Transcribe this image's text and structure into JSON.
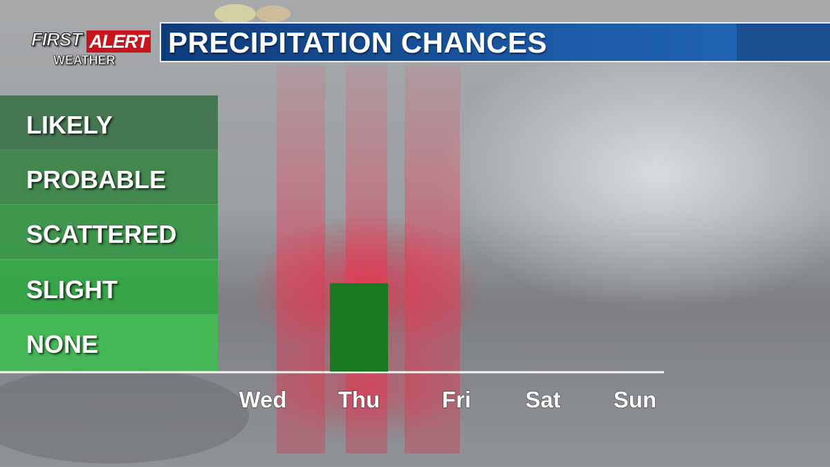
{
  "brand": {
    "first": "FIRST",
    "alert": "ALERT",
    "sub": "WEATHER"
  },
  "title": "PRECIPITATION CHANCES",
  "colors": {
    "bar": "#1a7a22",
    "title_bar": "#1b5aa6",
    "alert_red": "#c8141c"
  },
  "chart_data": {
    "type": "bar",
    "categories": [
      "Wed",
      "Thu",
      "Fri",
      "Sat",
      "Sun"
    ],
    "levels": [
      "NONE",
      "SLIGHT",
      "SCATTERED",
      "PROBABLE",
      "LIKELY"
    ],
    "values": [
      0,
      1.6,
      0,
      0,
      0
    ],
    "ylim": [
      0,
      5
    ],
    "grid": false,
    "legend": "none"
  }
}
